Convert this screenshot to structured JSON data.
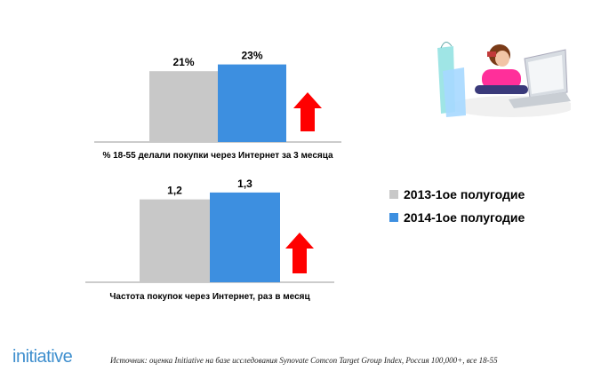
{
  "chart_data": [
    {
      "type": "bar",
      "xlabel": "% 18-55 делали покупки через Интернет за 3 месяца",
      "series": [
        {
          "name": "2013-1ое полугодие",
          "values": [
            21
          ]
        },
        {
          "name": "2014-1ое полугодие",
          "values": [
            23
          ]
        }
      ],
      "value_labels": [
        "21%",
        "23%"
      ],
      "ylim": [
        0,
        25
      ],
      "trend": "up"
    },
    {
      "type": "bar",
      "xlabel": "Частота покупок через Интернет, раз в месяц",
      "series": [
        {
          "name": "2013-1ое полугодие",
          "values": [
            1.2
          ]
        },
        {
          "name": "2014-1ое полугодие",
          "values": [
            1.3
          ]
        }
      ],
      "value_labels": [
        "1,2",
        "1,3"
      ],
      "ylim": [
        0,
        1.8
      ],
      "trend": "up"
    }
  ],
  "legend": {
    "items": [
      {
        "label": "2013-1ое полугодие",
        "color": "#c8c8c8"
      },
      {
        "label": "2014-1ое полугодие",
        "color": "#3d8fe0"
      }
    ]
  },
  "colors": {
    "arrow": "#ff0000"
  },
  "brand": {
    "logo": "initiative",
    "color": "#3f8fce"
  },
  "footer": {
    "source": "Источник: оценка Initiative на базе исследования Synovate Comcon Target Group Index, Россия 100,000+, все 18-55"
  },
  "photo": {
    "icon": "online-shopping-photo"
  }
}
